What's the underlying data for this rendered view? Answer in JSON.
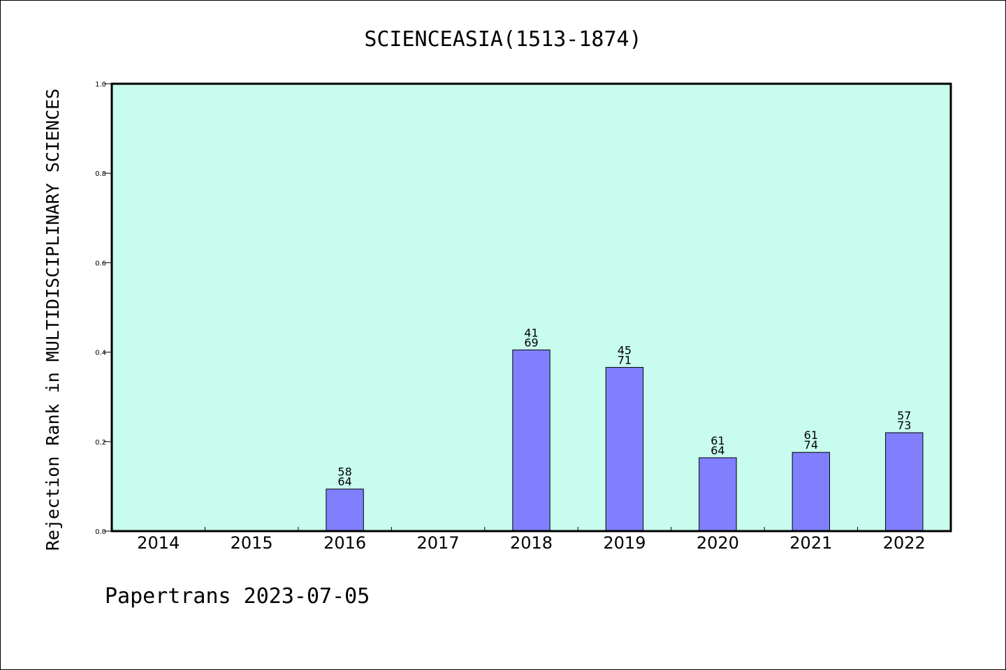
{
  "chart_data": {
    "type": "bar",
    "title": "SCIENCEASIA(1513-1874)",
    "ylabel": "Rejection Rank in MULTIDISCIPLINARY SCIENCES",
    "xlabel": "",
    "ylim": [
      0,
      1.0
    ],
    "yticks": [
      "0.0",
      "0.2",
      "0.4",
      "0.6",
      "0.8",
      "1.0"
    ],
    "categories": [
      "2014",
      "2015",
      "2016",
      "2017",
      "2018",
      "2019",
      "2020",
      "2021",
      "2022"
    ],
    "values": [
      null,
      null,
      0.094,
      null,
      0.405,
      0.366,
      0.164,
      0.176,
      0.22
    ],
    "labels_top": [
      null,
      null,
      "58",
      null,
      "41",
      "45",
      "61",
      "61",
      "57"
    ],
    "labels_bottom": [
      null,
      null,
      "64",
      null,
      "69",
      "71",
      "64",
      "74",
      "73"
    ],
    "grid": false,
    "background_color": "#c8fcee",
    "bar_color": "#8080ff"
  },
  "footer": "Papertrans 2023-07-05"
}
